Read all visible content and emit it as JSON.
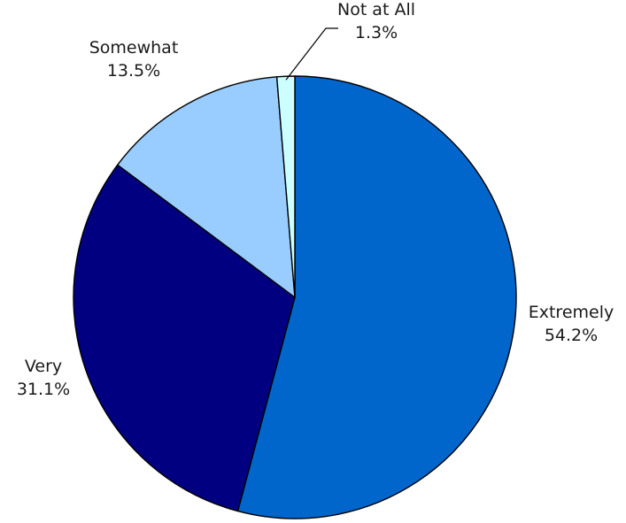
{
  "chart_data": {
    "type": "pie",
    "title": "",
    "start_angle_deg": 0,
    "direction": "clockwise",
    "slices": [
      {
        "name": "Extremely",
        "value": 54.2,
        "label": "54.2%",
        "color": "#0066CC"
      },
      {
        "name": "Very",
        "value": 31.1,
        "label": "31.1%",
        "color": "#000080"
      },
      {
        "name": "Somewhat",
        "value": 13.5,
        "label": "13.5%",
        "color": "#99CCFF"
      },
      {
        "name": "Not at All",
        "value": 1.3,
        "label": "1.3%",
        "color": "#CCFFFF"
      }
    ],
    "legend": "none"
  }
}
